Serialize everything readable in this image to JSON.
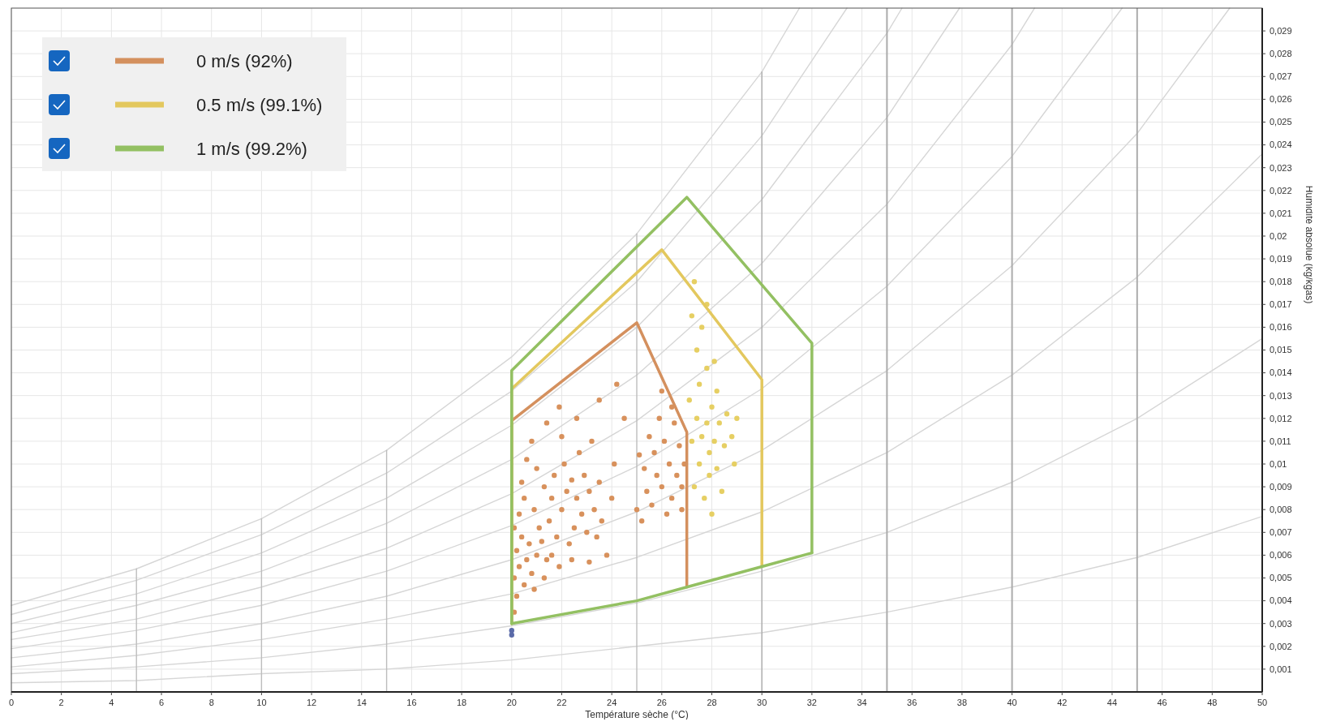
{
  "chart_data": {
    "type": "line",
    "xlabel": "Température sèche (°C)",
    "ylabel": "Humidité absolue (kg/kgas)",
    "xlim": [
      0,
      50
    ],
    "ylim": [
      0,
      0.03
    ],
    "xticks": [
      0,
      2,
      4,
      6,
      8,
      10,
      12,
      14,
      16,
      18,
      20,
      22,
      24,
      26,
      28,
      30,
      32,
      34,
      36,
      38,
      40,
      42,
      44,
      46,
      48,
      50
    ],
    "yticks": [
      {
        "value": 0.001,
        "label": "0,001"
      },
      {
        "value": 0.002,
        "label": "0,002"
      },
      {
        "value": 0.003,
        "label": "0,003"
      },
      {
        "value": 0.004,
        "label": "0,004"
      },
      {
        "value": 0.005,
        "label": "0,005"
      },
      {
        "value": 0.006,
        "label": "0,006"
      },
      {
        "value": 0.007,
        "label": "0,007"
      },
      {
        "value": 0.008,
        "label": "0,008"
      },
      {
        "value": 0.009,
        "label": "0,009"
      },
      {
        "value": 0.01,
        "label": "0,01"
      },
      {
        "value": 0.011,
        "label": "0,011"
      },
      {
        "value": 0.012,
        "label": "0,012"
      },
      {
        "value": 0.013,
        "label": "0,013"
      },
      {
        "value": 0.014,
        "label": "0,014"
      },
      {
        "value": 0.015,
        "label": "0,015"
      },
      {
        "value": 0.016,
        "label": "0,016"
      },
      {
        "value": 0.017,
        "label": "0,017"
      },
      {
        "value": 0.018,
        "label": "0,018"
      },
      {
        "value": 0.019,
        "label": "0,019"
      },
      {
        "value": 0.02,
        "label": "0,02"
      },
      {
        "value": 0.021,
        "label": "0,021"
      },
      {
        "value": 0.022,
        "label": "0,022"
      },
      {
        "value": 0.023,
        "label": "0,023"
      },
      {
        "value": 0.024,
        "label": "0,024"
      },
      {
        "value": 0.025,
        "label": "0,025"
      },
      {
        "value": 0.026,
        "label": "0,026"
      },
      {
        "value": 0.027,
        "label": "0,027"
      },
      {
        "value": 0.028,
        "label": "0,028"
      },
      {
        "value": 0.029,
        "label": "0,029"
      }
    ],
    "grid": true,
    "legend": "top left",
    "series": [
      {
        "color": "#d6d6d6",
        "x": [
          0,
          5,
          10,
          15,
          20,
          25,
          30,
          35,
          40,
          45,
          50
        ],
        "values": [
          0.0004,
          0.0005,
          0.0008,
          0.001,
          0.0014,
          0.002,
          0.0026,
          0.0035,
          0.0046,
          0.0059,
          0.0077
        ]
      },
      {
        "color": "#d6d6d6",
        "x": [
          0,
          5,
          10,
          15,
          20,
          25,
          30,
          35,
          40,
          45,
          50
        ],
        "values": [
          0.0008,
          0.0011,
          0.0015,
          0.0021,
          0.0029,
          0.0039,
          0.0053,
          0.007,
          0.0092,
          0.012,
          0.0155
        ]
      },
      {
        "color": "#d6d6d6",
        "x": [
          0,
          5,
          10,
          15,
          20,
          25,
          30,
          35,
          40,
          45,
          50
        ],
        "values": [
          0.0011,
          0.0016,
          0.0023,
          0.0032,
          0.0043,
          0.0059,
          0.0079,
          0.0105,
          0.0139,
          0.0182,
          0.0236
        ]
      },
      {
        "color": "#d6d6d6",
        "x": [
          0,
          5,
          10,
          15,
          20,
          25,
          30,
          35,
          40,
          45,
          48.7
        ],
        "values": [
          0.0015,
          0.0021,
          0.003,
          0.0042,
          0.0058,
          0.0079,
          0.0106,
          0.0141,
          0.0187,
          0.0245,
          0.03
        ]
      },
      {
        "color": "#d6d6d6",
        "x": [
          0,
          5,
          10,
          15,
          20,
          25,
          30,
          35,
          40,
          44.4
        ],
        "values": [
          0.0019,
          0.0027,
          0.0038,
          0.0053,
          0.0073,
          0.0099,
          0.0133,
          0.0178,
          0.0235,
          0.03
        ]
      },
      {
        "color": "#d6d6d6",
        "x": [
          0,
          5,
          10,
          15,
          20,
          25,
          30,
          35,
          40,
          40.9
        ],
        "values": [
          0.0023,
          0.0032,
          0.0046,
          0.0063,
          0.0087,
          0.0119,
          0.016,
          0.0214,
          0.0284,
          0.03
        ]
      },
      {
        "color": "#d6d6d6",
        "x": [
          0,
          5,
          10,
          15,
          20,
          25,
          30,
          35,
          37.9
        ],
        "values": [
          0.0026,
          0.0038,
          0.0053,
          0.0074,
          0.0102,
          0.0139,
          0.0188,
          0.0252,
          0.03
        ]
      },
      {
        "color": "#d6d6d6",
        "x": [
          0,
          5,
          10,
          15,
          20,
          25,
          30,
          35,
          35.6
        ],
        "values": [
          0.003,
          0.0043,
          0.0061,
          0.0085,
          0.0117,
          0.016,
          0.0216,
          0.0289,
          0.03
        ]
      },
      {
        "color": "#d6d6d6",
        "x": [
          0,
          5,
          10,
          15,
          20,
          25,
          30,
          33.4
        ],
        "values": [
          0.0034,
          0.0049,
          0.0069,
          0.0096,
          0.0132,
          0.018,
          0.0244,
          0.03
        ]
      },
      {
        "color": "#d6d6d6",
        "x": [
          0,
          5,
          10,
          15,
          20,
          25,
          30,
          31.5
        ],
        "values": [
          0.0038,
          0.0054,
          0.0076,
          0.0106,
          0.0147,
          0.0201,
          0.0272,
          0.03
        ]
      },
      {
        "color": "#bdbdbd",
        "x": [
          5,
          5
        ],
        "values": [
          0,
          0.0054
        ]
      },
      {
        "color": "#bdbdbd",
        "x": [
          10,
          10
        ],
        "values": [
          0,
          0.0076
        ]
      },
      {
        "color": "#bdbdbd",
        "x": [
          15,
          15
        ],
        "values": [
          0,
          0.0106
        ]
      },
      {
        "color": "#bdbdbd",
        "x": [
          25,
          25
        ],
        "values": [
          0,
          0.0201
        ]
      },
      {
        "color": "#ababab",
        "x": [
          30,
          30
        ],
        "values": [
          0,
          0.0272
        ]
      },
      {
        "type": "scatter",
        "color": "#d8915c",
        "x": [
          20.1,
          20.2,
          20.1,
          20.3,
          20.2,
          20.4,
          20.1,
          20.5,
          20.6,
          20.3,
          20.7,
          20.5,
          20.8,
          21.0,
          21.1,
          20.9,
          21.2,
          21.4,
          21.3,
          21.0,
          20.6,
          20.4,
          21.5,
          21.6,
          21.8,
          21.7,
          22.0,
          22.2,
          22.4,
          22.1,
          22.6,
          22.8,
          22.5,
          22.3,
          22.9,
          23.1,
          23.3,
          23.0,
          22.7,
          23.4,
          23.6,
          23.8,
          23.5,
          24.0,
          23.2,
          22.0,
          21.4,
          20.8,
          21.9,
          22.6,
          23.5,
          24.2,
          24.5,
          24.1,
          21.6,
          21.9,
          22.4,
          23.1,
          20.9,
          21.3,
          25.0,
          25.2,
          25.4,
          25.3,
          25.6,
          25.8,
          25.7,
          26.0,
          26.1,
          26.3,
          26.4,
          26.5,
          26.6,
          26.7,
          26.8,
          26.9,
          26.2,
          25.9,
          26.4,
          26.8,
          25.5,
          26.0,
          25.1
        ],
        "values": [
          0.0035,
          0.0042,
          0.005,
          0.0055,
          0.0062,
          0.0068,
          0.0072,
          0.0047,
          0.0058,
          0.0078,
          0.0065,
          0.0085,
          0.0052,
          0.006,
          0.0072,
          0.008,
          0.0066,
          0.0058,
          0.009,
          0.0098,
          0.0102,
          0.0092,
          0.0075,
          0.0085,
          0.0068,
          0.0095,
          0.008,
          0.0088,
          0.0093,
          0.01,
          0.0085,
          0.0078,
          0.0072,
          0.0065,
          0.0095,
          0.0088,
          0.008,
          0.007,
          0.0105,
          0.0068,
          0.0075,
          0.006,
          0.0092,
          0.0085,
          0.011,
          0.0112,
          0.0118,
          0.011,
          0.0125,
          0.012,
          0.0128,
          0.0135,
          0.012,
          0.01,
          0.006,
          0.0055,
          0.0058,
          0.0057,
          0.0045,
          0.005,
          0.008,
          0.0075,
          0.0088,
          0.0098,
          0.0082,
          0.0095,
          0.0105,
          0.009,
          0.011,
          0.01,
          0.0085,
          0.0118,
          0.0095,
          0.0108,
          0.009,
          0.01,
          0.0078,
          0.012,
          0.0125,
          0.008,
          0.0112,
          0.0132,
          0.0104
        ]
      },
      {
        "type": "scatter",
        "color": "#e6cf63",
        "x": [
          27.2,
          27.4,
          27.5,
          27.6,
          27.8,
          27.9,
          28.0,
          28.1,
          28.2,
          28.3,
          28.5,
          28.6,
          28.8,
          27.3,
          27.7,
          28.0,
          28.4,
          27.5,
          27.8,
          27.4,
          27.6,
          27.2,
          27.8,
          27.3,
          28.1,
          28.2,
          27.1,
          28.9,
          29.0,
          27.9
        ],
        "values": [
          0.011,
          0.012,
          0.01,
          0.0112,
          0.0118,
          0.0105,
          0.0125,
          0.011,
          0.0098,
          0.0118,
          0.0108,
          0.0122,
          0.0112,
          0.009,
          0.0085,
          0.0078,
          0.0088,
          0.0135,
          0.0142,
          0.015,
          0.016,
          0.0165,
          0.017,
          0.018,
          0.0145,
          0.0132,
          0.0128,
          0.01,
          0.012,
          0.0095
        ]
      },
      {
        "type": "scatter",
        "color": "#5a6aa8",
        "x": [
          20.0,
          20.0
        ],
        "values": [
          0.0025,
          0.0027
        ]
      },
      {
        "name": "0 m/s (92%)",
        "color": "#d4905e",
        "x": [
          20,
          20,
          25,
          27,
          27
        ],
        "values": [
          0.003,
          0.0119,
          0.0162,
          0.0114,
          0.0046
        ]
      },
      {
        "name": "0.5 m/s (99.1%)",
        "color": "#e3c85e",
        "x": [
          20,
          20,
          26,
          30,
          30
        ],
        "values": [
          0.003,
          0.0133,
          0.0194,
          0.0137,
          0.0055
        ]
      },
      {
        "name": "1 m/s (99.2%)",
        "color": "#93c062",
        "x": [
          20,
          20,
          27,
          32,
          32
        ],
        "values": [
          0.003,
          0.0141,
          0.0217,
          0.0153,
          0.0061
        ]
      },
      {
        "color": "#93c062",
        "x": [
          20,
          25,
          27,
          30,
          32
        ],
        "values": [
          0.003,
          0.004,
          0.0046,
          0.0055,
          0.0061
        ]
      }
    ],
    "ref_lines": [
      {
        "axis": "x",
        "value": 35,
        "color": "#ababab"
      },
      {
        "axis": "x",
        "value": 40,
        "color": "#ababab"
      },
      {
        "axis": "x",
        "value": 45,
        "color": "#ababab"
      }
    ]
  }
}
